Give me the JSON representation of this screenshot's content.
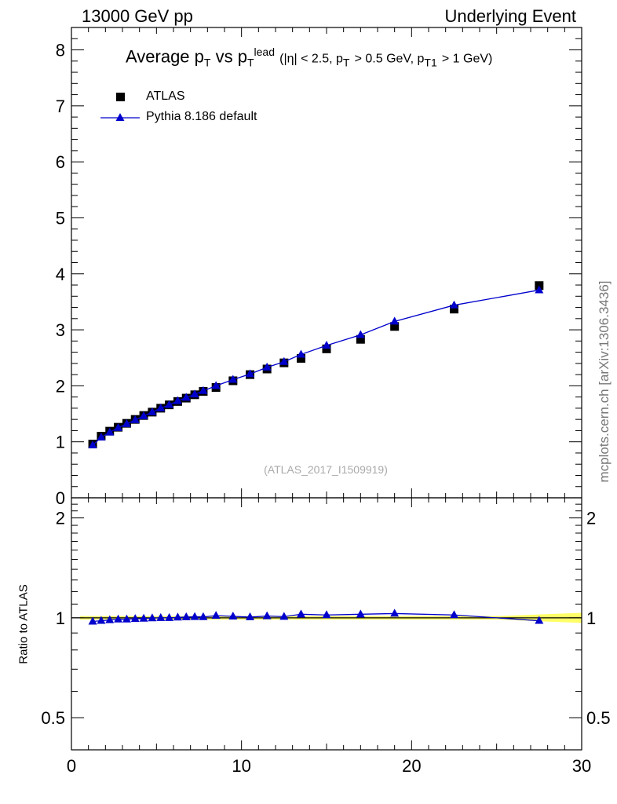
{
  "header": {
    "left": "13000 GeV pp",
    "right": "Underlying Event"
  },
  "side_credit": "mcplots.cern.ch [arXiv:1306.3436]",
  "watermark": "(ATLAS_2017_I1509919)",
  "chart_data": [
    {
      "type": "scatter",
      "title": "Average pT vs pT lead (|η| < 2.5, pT > 0.5 GeV, pT1 > 1 GeV)",
      "title_parts": {
        "avg": "Average p",
        "T": "T",
        "vs": "vs p",
        "lead": "lead",
        "cond_open": "(|η| < 2.5, p",
        "cond_mid": "> 0.5 GeV, p",
        "T1": "T1",
        "cond_close": "> 1 GeV)"
      },
      "xlim": [
        0,
        30
      ],
      "ylim": [
        0,
        8.4
      ],
      "y_ticks": [
        0,
        1,
        2,
        3,
        4,
        5,
        6,
        7,
        8
      ],
      "legend": {
        "placement": "top-left"
      },
      "series": [
        {
          "name": "ATLAS",
          "marker": "square",
          "color": "#000000",
          "x": [
            1.25,
            1.75,
            2.25,
            2.75,
            3.25,
            3.75,
            4.25,
            4.75,
            5.25,
            5.75,
            6.25,
            6.75,
            7.25,
            7.75,
            8.5,
            9.5,
            10.5,
            11.5,
            12.5,
            13.5,
            15.0,
            17.0,
            19.0,
            22.5,
            27.5
          ],
          "y": [
            0.96,
            1.1,
            1.19,
            1.26,
            1.33,
            1.4,
            1.47,
            1.53,
            1.6,
            1.66,
            1.72,
            1.78,
            1.84,
            1.9,
            1.97,
            2.09,
            2.2,
            2.3,
            2.41,
            2.49,
            2.66,
            2.83,
            3.06,
            3.37,
            3.79
          ]
        },
        {
          "name": "Pythia 8.186 default",
          "marker": "triangle",
          "color": "#0000cc",
          "x": [
            1.25,
            1.75,
            2.25,
            2.75,
            3.25,
            3.75,
            4.25,
            4.75,
            5.25,
            5.75,
            6.25,
            6.75,
            7.25,
            7.75,
            8.5,
            9.5,
            10.5,
            11.5,
            12.5,
            13.5,
            15.0,
            17.0,
            19.0,
            22.5,
            27.5
          ],
          "y": [
            0.94,
            1.08,
            1.17,
            1.25,
            1.32,
            1.39,
            1.46,
            1.53,
            1.6,
            1.66,
            1.73,
            1.79,
            1.85,
            1.91,
            2.0,
            2.11,
            2.21,
            2.33,
            2.43,
            2.56,
            2.72,
            2.91,
            3.15,
            3.44,
            3.71
          ]
        }
      ]
    },
    {
      "type": "line",
      "ylabel": "Ratio to ATLAS",
      "xlim": [
        0,
        30
      ],
      "ylim": [
        0.4,
        2.3
      ],
      "y_ticks": [
        0.5,
        1,
        2
      ],
      "x_ticks": [
        0,
        10,
        20,
        30
      ],
      "series": [
        {
          "name": "Pythia 8.186 default",
          "color": "#0000cc",
          "x": [
            1.25,
            1.75,
            2.25,
            2.75,
            3.25,
            3.75,
            4.25,
            4.75,
            5.25,
            5.75,
            6.25,
            6.75,
            7.25,
            7.75,
            8.5,
            9.5,
            10.5,
            11.5,
            12.5,
            13.5,
            15.0,
            17.0,
            19.0,
            22.5,
            27.5
          ],
          "y": [
            0.975,
            0.98,
            0.985,
            0.99,
            0.99,
            0.993,
            0.995,
            0.998,
            1.0,
            1.0,
            1.003,
            1.005,
            1.007,
            1.006,
            1.015,
            1.01,
            1.005,
            1.012,
            1.008,
            1.025,
            1.02,
            1.025,
            1.03,
            1.02,
            0.98
          ]
        }
      ],
      "band": {
        "color": "#ffff66",
        "x": [
          0.5,
          25.0,
          30.0
        ],
        "half_width": [
          0.012,
          0.012,
          0.035
        ]
      }
    }
  ]
}
